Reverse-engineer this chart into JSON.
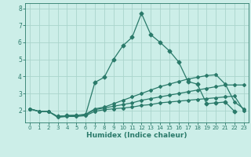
{
  "background_color": "#cceee8",
  "grid_color": "#aad4cc",
  "line_color": "#2a7a6a",
  "xlabel": "Humidex (Indice chaleur)",
  "xlim": [
    -0.5,
    23.5
  ],
  "ylim": [
    1.3,
    8.3
  ],
  "yticks": [
    2,
    3,
    4,
    5,
    6,
    7,
    8
  ],
  "xticks": [
    0,
    1,
    2,
    3,
    4,
    5,
    6,
    7,
    8,
    9,
    10,
    11,
    12,
    13,
    14,
    15,
    16,
    17,
    18,
    19,
    20,
    21,
    22,
    23
  ],
  "lines": [
    {
      "x": [
        0,
        1,
        2,
        3,
        4,
        5,
        6,
        7,
        8,
        9,
        10,
        11,
        12,
        13,
        14,
        15,
        16,
        17,
        18,
        19,
        20,
        21,
        22,
        23
      ],
      "y": [
        2.1,
        1.95,
        1.95,
        1.6,
        1.65,
        1.65,
        1.7,
        1.95,
        2.05,
        2.1,
        2.15,
        2.2,
        2.3,
        2.35,
        2.45,
        2.5,
        2.55,
        2.6,
        2.65,
        2.7,
        2.75,
        2.8,
        2.85,
        2.0
      ],
      "marker": "D",
      "markersize": 2.0,
      "linewidth": 0.9
    },
    {
      "x": [
        0,
        1,
        2,
        3,
        4,
        5,
        6,
        7,
        8,
        9,
        10,
        11,
        12,
        13,
        14,
        15,
        16,
        17,
        18,
        19,
        20,
        21,
        22,
        23
      ],
      "y": [
        2.1,
        1.95,
        1.95,
        1.65,
        1.7,
        1.7,
        1.75,
        2.05,
        2.15,
        2.25,
        2.35,
        2.45,
        2.6,
        2.7,
        2.8,
        2.9,
        3.0,
        3.1,
        3.2,
        3.3,
        3.4,
        3.5,
        3.5,
        3.5
      ],
      "marker": "D",
      "markersize": 2.0,
      "linewidth": 0.9
    },
    {
      "x": [
        0,
        1,
        2,
        3,
        4,
        5,
        6,
        7,
        8,
        9,
        10,
        11,
        12,
        13,
        14,
        15,
        16,
        17,
        18,
        19,
        20,
        21,
        22,
        23
      ],
      "y": [
        2.1,
        1.95,
        1.95,
        1.65,
        1.7,
        1.72,
        1.78,
        2.1,
        2.2,
        2.4,
        2.6,
        2.8,
        3.0,
        3.2,
        3.4,
        3.55,
        3.7,
        3.85,
        3.95,
        4.05,
        4.1,
        3.55,
        2.5,
        2.1
      ],
      "marker": "D",
      "markersize": 2.0,
      "linewidth": 0.9
    },
    {
      "x": [
        3,
        4,
        5,
        6,
        7,
        8,
        9,
        10,
        11,
        12,
        13,
        14,
        15,
        16,
        17,
        18,
        19,
        20,
        21,
        22
      ],
      "y": [
        1.65,
        1.7,
        1.72,
        1.75,
        3.65,
        3.95,
        5.0,
        5.8,
        6.3,
        7.7,
        6.45,
        6.0,
        5.5,
        4.85,
        3.7,
        3.55,
        2.4,
        2.45,
        2.5,
        1.95
      ],
      "marker": "D",
      "markersize": 2.5,
      "linewidth": 0.9
    }
  ]
}
